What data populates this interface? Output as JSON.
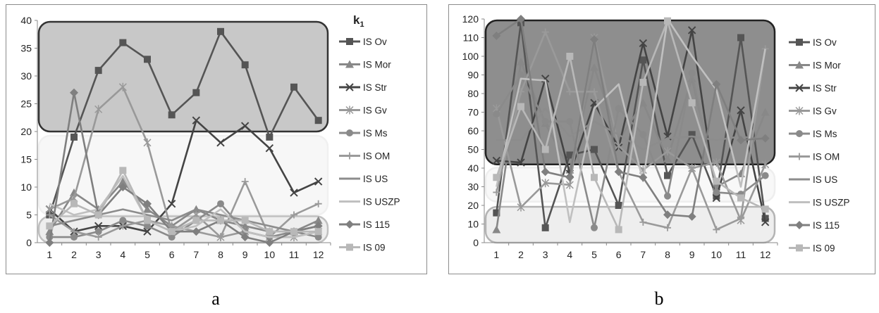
{
  "captions": {
    "a": "a",
    "b": "b"
  },
  "chart_data": [
    {
      "type": "line",
      "panel": "a",
      "legend_title": "k",
      "legend_title_subscript": "1",
      "x": [
        1,
        2,
        3,
        4,
        5,
        6,
        7,
        8,
        9,
        10,
        11,
        12
      ],
      "ylim": [
        0,
        40
      ],
      "yticks": [
        0,
        5,
        10,
        15,
        20,
        25,
        30,
        35,
        40
      ],
      "grid": false,
      "legend_position": "right",
      "bands": [
        {
          "ymin": 20,
          "ymax": 40,
          "fill": "#c8c8c8",
          "stroke": "#333333"
        },
        {
          "ymin": 5,
          "ymax": 19.5,
          "fill": "#f7f7f7",
          "stroke": "#f0f0f0"
        },
        {
          "ymin": 0,
          "ymax": 5,
          "fill": "#eeeeee",
          "stroke": "#c0c0c0"
        }
      ],
      "series": [
        {
          "name": "IS Ov",
          "marker": "square",
          "color": "#555555",
          "values": [
            5,
            19,
            31,
            36,
            33,
            23,
            27,
            38,
            32,
            19,
            28,
            22
          ]
        },
        {
          "name": "IS Mor",
          "marker": "triangle",
          "color": "#888888",
          "values": [
            2,
            9,
            6,
            11,
            6,
            3,
            6,
            4,
            3,
            2,
            2,
            4
          ]
        },
        {
          "name": "IS Str",
          "marker": "x",
          "color": "#444444",
          "values": [
            6,
            2,
            3,
            3,
            2,
            7,
            22,
            18,
            21,
            17,
            9,
            11
          ]
        },
        {
          "name": "IS Gv",
          "marker": "star",
          "color": "#999999",
          "values": [
            6,
            8,
            24,
            28,
            18,
            2,
            5,
            1,
            2,
            1,
            1,
            2
          ]
        },
        {
          "name": "IS Ms",
          "marker": "circle",
          "color": "#8a8a8a",
          "values": [
            1,
            1,
            2,
            4,
            3,
            1,
            4,
            7,
            2,
            1,
            2,
            1
          ]
        },
        {
          "name": "IS OM",
          "marker": "plus",
          "color": "#9a9a9a",
          "values": [
            5,
            2,
            1,
            3,
            4,
            3,
            2,
            1,
            11,
            1,
            5,
            7
          ]
        },
        {
          "name": "IS US",
          "marker": "none",
          "color": "#8c8c8c",
          "values": [
            3,
            4,
            5,
            6,
            5,
            4,
            6,
            5,
            4,
            3,
            2,
            3
          ]
        },
        {
          "name": "IS USZP",
          "marker": "none",
          "color": "#c0c0c0",
          "values": [
            7,
            5,
            6,
            12,
            4,
            2,
            3,
            6,
            2,
            1,
            1,
            2
          ]
        },
        {
          "name": "IS 115",
          "marker": "diamond",
          "color": "#7f7f7f",
          "values": [
            0,
            27,
            5,
            10,
            7,
            2,
            2,
            4,
            1,
            0,
            2,
            3
          ]
        },
        {
          "name": "IS 09",
          "marker": "square",
          "color": "#b8b8b8",
          "values": [
            3,
            7,
            5,
            13,
            4,
            2,
            4,
            4,
            4,
            2,
            2,
            2
          ]
        }
      ]
    },
    {
      "type": "line",
      "panel": "b",
      "x": [
        1,
        2,
        3,
        4,
        5,
        6,
        7,
        8,
        9,
        10,
        11,
        12
      ],
      "ylim": [
        0,
        120
      ],
      "yticks": [
        0,
        10,
        20,
        30,
        40,
        50,
        60,
        70,
        80,
        90,
        100,
        110,
        120
      ],
      "grid": false,
      "legend_position": "right",
      "bands": [
        {
          "ymin": 42,
          "ymax": 120,
          "fill": "#8e8e8e",
          "stroke": "#222222"
        },
        {
          "ymin": 22,
          "ymax": 41,
          "fill": "#f8f8f8",
          "stroke": "#eeeeee"
        },
        {
          "ymin": 0,
          "ymax": 20,
          "fill": "#eeeeee",
          "stroke": "#b4b4b4"
        }
      ],
      "series": [
        {
          "name": "IS Ov",
          "marker": "square",
          "color": "#555555",
          "values": [
            16,
            118,
            8,
            47,
            50,
            20,
            98,
            36,
            58,
            25,
            110,
            13
          ]
        },
        {
          "name": "IS Mor",
          "marker": "triangle",
          "color": "#888888",
          "values": [
            7,
            97,
            64,
            39,
            94,
            55,
            75,
            45,
            88,
            30,
            37,
            70
          ]
        },
        {
          "name": "IS Str",
          "marker": "x",
          "color": "#444444",
          "values": [
            44,
            43,
            88,
            37,
            75,
            51,
            107,
            57,
            114,
            24,
            71,
            11
          ]
        },
        {
          "name": "IS Gv",
          "marker": "star",
          "color": "#999999",
          "values": [
            72,
            19,
            32,
            31,
            110,
            52,
            39,
            49,
            40,
            43,
            12,
            42
          ]
        },
        {
          "name": "IS Ms",
          "marker": "circle",
          "color": "#8a8a8a",
          "values": [
            69,
            90,
            65,
            65,
            8,
            72,
            58,
            25,
            91,
            27,
            26,
            36
          ]
        },
        {
          "name": "IS OM",
          "marker": "plus",
          "color": "#9a9a9a",
          "values": [
            27,
            81,
            113,
            81,
            81,
            38,
            11,
            8,
            40,
            7,
            13,
            104
          ]
        },
        {
          "name": "IS US",
          "marker": "none",
          "color": "#8c8c8c",
          "values": [
            55,
            55,
            72,
            57,
            65,
            58,
            50,
            56,
            57,
            55,
            57,
            55
          ]
        },
        {
          "name": "IS USZP",
          "marker": "none",
          "color": "#c0c0c0",
          "values": [
            30,
            88,
            87,
            11,
            72,
            85,
            33,
            120,
            100,
            82,
            30,
            104
          ]
        },
        {
          "name": "IS 115",
          "marker": "diamond",
          "color": "#7f7f7f",
          "values": [
            111,
            120,
            38,
            35,
            109,
            38,
            35,
            15,
            14,
            85,
            55,
            56
          ]
        },
        {
          "name": "IS 09",
          "marker": "square",
          "color": "#b8b8b8",
          "values": [
            35,
            73,
            50,
            100,
            35,
            7,
            86,
            119,
            75,
            33,
            24,
            18
          ]
        }
      ]
    }
  ]
}
